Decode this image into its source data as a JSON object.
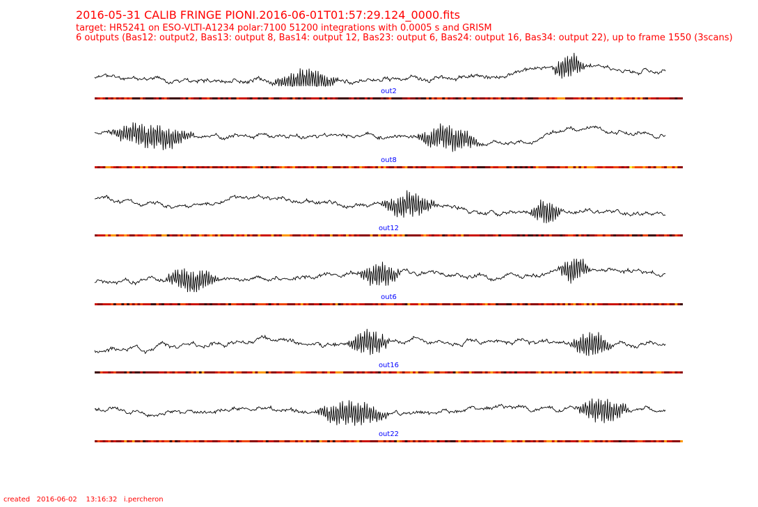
{
  "header": {
    "title": "2016-05-31 CALIB FRINGE PIONI.2016-06-01T01:57:29.124_0000.fits",
    "subtitle1": "target: HR5241 on ESO-VLTI-A1234 polar:7100 51200 integrations with 0.0005 s and GRISM",
    "subtitle2": "6 outputs (Bas12: output2, Bas13: output 8, Bas14: output 12, Bas23: output 6, Bas24: output 16, Bas34: output 22), up to frame 1550 (3scans)"
  },
  "footer": {
    "created": "created   2016-06-02    13:16:32   i.percheron"
  },
  "colors": {
    "title": "#ff0000",
    "label": "#0000ff",
    "trace": "#000000"
  },
  "chart_data": {
    "type": "line",
    "x_range": [
      0,
      1550
    ],
    "panels": [
      {
        "label": "out2",
        "seed": 11,
        "bursts": [
          [
            0.37,
            0.06
          ],
          [
            0.83,
            0.03
          ]
        ],
        "shape": [
          0.3,
          0.2,
          0.15,
          0.2,
          0.3,
          0.6,
          0.45
        ]
      },
      {
        "label": "out8",
        "seed": 23,
        "bursts": [
          [
            0.1,
            0.08
          ],
          [
            0.62,
            0.06
          ]
        ],
        "shape": [
          0.65,
          0.55,
          0.6,
          0.58,
          0.55,
          0.35,
          0.8,
          0.6
        ]
      },
      {
        "label": "out12",
        "seed": 37,
        "bursts": [
          [
            0.55,
            0.05
          ],
          [
            0.79,
            0.03
          ]
        ],
        "shape": [
          0.7,
          0.55,
          0.75,
          0.6,
          0.5,
          0.3,
          0.35,
          0.25
        ]
      },
      {
        "label": "out6",
        "seed": 51,
        "bursts": [
          [
            0.17,
            0.05
          ],
          [
            0.5,
            0.04
          ],
          [
            0.84,
            0.03
          ]
        ],
        "shape": [
          0.3,
          0.35,
          0.4,
          0.5,
          0.55,
          0.45,
          0.7,
          0.55
        ]
      },
      {
        "label": "out16",
        "seed": 67,
        "bursts": [
          [
            0.48,
            0.04
          ],
          [
            0.87,
            0.04
          ]
        ],
        "shape": [
          0.3,
          0.45,
          0.55,
          0.5,
          0.6,
          0.55,
          0.45,
          0.5
        ]
      },
      {
        "label": "out22",
        "seed": 79,
        "bursts": [
          [
            0.45,
            0.07
          ],
          [
            0.89,
            0.05
          ]
        ],
        "shape": [
          0.6,
          0.5,
          0.55,
          0.5,
          0.45,
          0.65,
          0.55,
          0.6
        ]
      }
    ]
  }
}
